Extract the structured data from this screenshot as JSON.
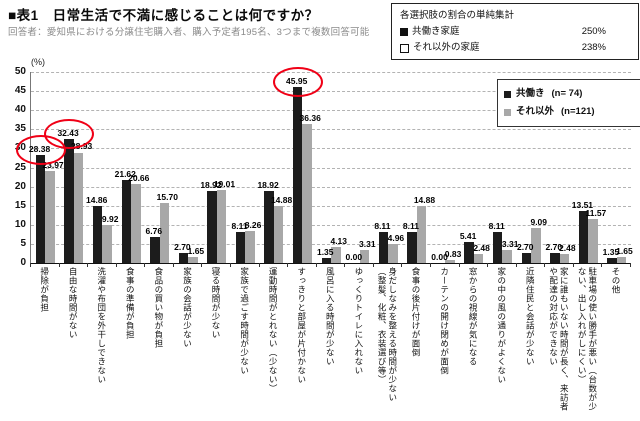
{
  "title": "■表1　日常生活で不満に感じることは何ですか？",
  "subtitle": "回答者：愛知県における分譲住宅購入者、購入予定者195名、3つまで複数回答可能",
  "summary_box": {
    "heading": "各選択肢の割合の単純集計",
    "rows": [
      {
        "marker": "filled-square",
        "label": "共働き家庭",
        "value": "250%"
      },
      {
        "marker": "open-square",
        "label": "それ以外の家庭",
        "value": "238%"
      }
    ]
  },
  "legend": {
    "items": [
      {
        "label": "共働き",
        "count": "(n= 74)",
        "color": "#1c1c1c"
      },
      {
        "label": "それ以外",
        "count": "(n=121)",
        "color": "#a8a8a8"
      }
    ]
  },
  "chart_data": {
    "type": "bar",
    "title": "日常生活で不満に感じることは何ですか？",
    "unit_label": "(%)",
    "ylim": [
      0,
      50
    ],
    "ytick_step": 5,
    "grid": "horizontal-dashed",
    "legend_position": "upper-right-inside",
    "value_label_decimals": 2,
    "highlight_color": "#f00016",
    "categories": [
      "掃除が負担",
      "自由な時間がない",
      "洗濯や布団を外干しできない",
      "食事の準備が負担",
      "食品の買い物が負担",
      "家族の会話が少ない",
      "寝る時間が少ない",
      "家族で過ごす時間が少ない",
      "運動時間がとれない（少ない）",
      "すっきりと部屋が片付かない",
      "風呂に入る時間が少ない",
      "ゆっくりトイレに入れない",
      "身だしなみを整える時間が少ない（整髪、化粧、衣装選び等）",
      "食事の後片付けが面倒",
      "カーテンの開け閉めが面倒",
      "窓からの視線が気になる",
      "家の中の風の通りがよくない",
      "近隣住民と会話が少ない",
      "家に誰もいない時間が長く、来訪者や配達の対応ができない",
      "駐車場の使い勝手が悪い（台数が少ない、出し入れがしにくい）",
      "その他"
    ],
    "series": [
      {
        "name": "共働き",
        "color": "#1c1c1c",
        "values": [
          28.38,
          32.43,
          14.86,
          21.62,
          6.76,
          2.7,
          18.92,
          8.11,
          18.92,
          45.95,
          1.35,
          0.0,
          8.11,
          8.11,
          0.0,
          5.41,
          8.11,
          2.7,
          2.7,
          13.51,
          1.35
        ]
      },
      {
        "name": "それ以外",
        "color": "#a8a8a8",
        "values": [
          23.97,
          28.93,
          9.92,
          20.66,
          15.7,
          1.65,
          19.01,
          8.26,
          14.88,
          36.36,
          4.13,
          3.31,
          4.96,
          14.88,
          0.83,
          2.48,
          3.31,
          9.09,
          2.48,
          11.57,
          1.65
        ]
      }
    ],
    "highlighted": [
      {
        "series": 0,
        "index": 0,
        "value": 28.38
      },
      {
        "series": 0,
        "index": 1,
        "value": 32.43
      },
      {
        "series": 0,
        "index": 9,
        "value": 45.95
      }
    ]
  }
}
